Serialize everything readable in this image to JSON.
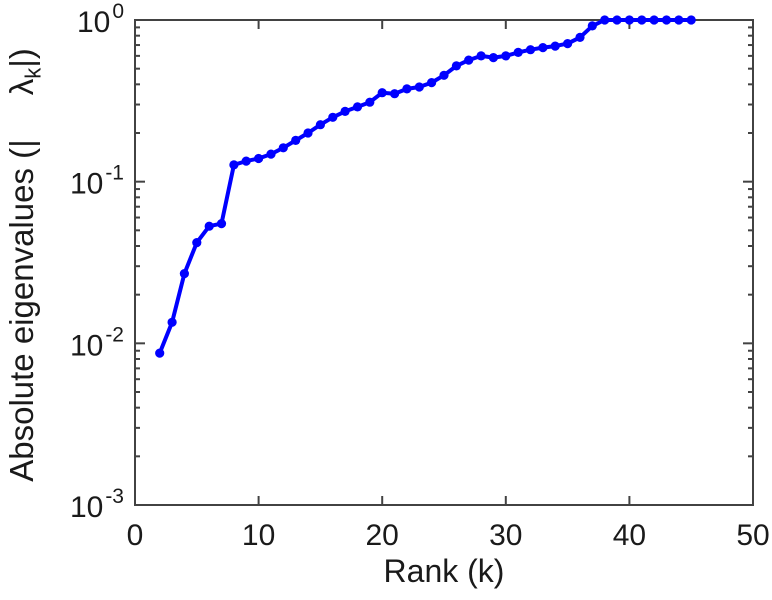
{
  "chart_data": {
    "type": "line",
    "xlabel": "Rank (k)",
    "ylabel_parts": {
      "prefix": "Absolute eigenvalues (|",
      "lambda": "λ",
      "subscript": "k",
      "suffix": "|)"
    },
    "x_axis": {
      "label": "Rank (k)",
      "scale": "linear",
      "lim": [
        0,
        50
      ],
      "ticks": [
        0,
        10,
        20,
        30,
        40,
        50
      ]
    },
    "y_axis": {
      "scale": "log",
      "lim": [
        0.001,
        1
      ],
      "tick_base": "10",
      "tick_exponents": [
        0,
        -1,
        -2,
        -3
      ],
      "minor_ticks": true
    },
    "grid": false,
    "legend": false,
    "frame": "box",
    "colors": {
      "line": "#0000ff",
      "axis": "#424242",
      "text": "#1a1a1a",
      "background": "#ffffff"
    },
    "marker": "filled-circle",
    "line_width": 4,
    "series": [
      {
        "name": "absolute-eigenvalues",
        "color": "#0000ff",
        "x": [
          2,
          3,
          4,
          5,
          6,
          7,
          8,
          9,
          10,
          11,
          12,
          13,
          14,
          15,
          16,
          17,
          18,
          19,
          20,
          21,
          22,
          23,
          24,
          25,
          26,
          27,
          28,
          29,
          30,
          31,
          32,
          33,
          34,
          35,
          36,
          37,
          38,
          39,
          40,
          41,
          42,
          43,
          44,
          45
        ],
        "y": [
          0.0087,
          0.0135,
          0.027,
          0.042,
          0.053,
          0.055,
          0.127,
          0.134,
          0.139,
          0.148,
          0.162,
          0.18,
          0.2,
          0.225,
          0.25,
          0.272,
          0.29,
          0.31,
          0.355,
          0.35,
          0.375,
          0.385,
          0.41,
          0.455,
          0.52,
          0.565,
          0.6,
          0.585,
          0.6,
          0.63,
          0.655,
          0.675,
          0.69,
          0.715,
          0.78,
          0.92,
          1.0,
          1.0,
          1.0,
          1.0,
          1.0,
          1.0,
          1.0,
          1.0
        ]
      }
    ]
  }
}
